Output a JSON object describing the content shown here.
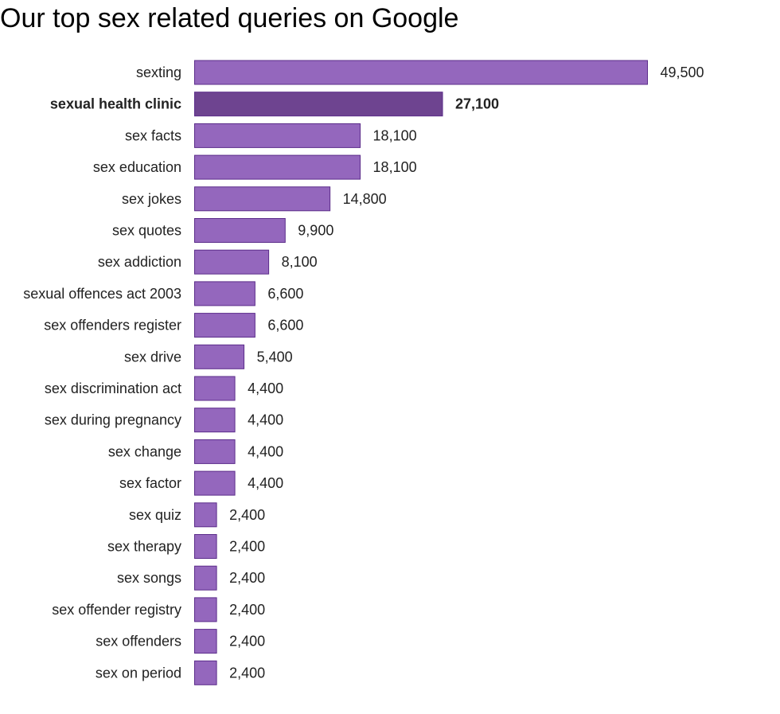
{
  "chart_data": {
    "type": "bar",
    "orientation": "horizontal",
    "title": "Our top sex related queries on Google",
    "xlabel": "",
    "ylabel": "",
    "grid": false,
    "xlim": [
      0,
      49500
    ],
    "colors": {
      "bar": "#9467bd",
      "bar_highlight": "#6e4490",
      "stroke": "#5b2c8a"
    },
    "highlight_category": "sexual health clinic",
    "categories": [
      "sexting",
      "sexual health clinic",
      "sex facts",
      "sex education",
      "sex jokes",
      "sex quotes",
      "sex addiction",
      "sexual offences act 2003",
      "sex offenders register",
      "sex drive",
      "sex discrimination act",
      "sex during pregnancy",
      "sex change",
      "sex factor",
      "sex quiz",
      "sex therapy",
      "sex songs",
      "sex offender registry",
      "sex offenders",
      "sex on period"
    ],
    "values": [
      49500,
      27100,
      18100,
      18100,
      14800,
      9900,
      8100,
      6600,
      6600,
      5400,
      4400,
      4400,
      4400,
      4400,
      2400,
      2400,
      2400,
      2400,
      2400,
      2400
    ],
    "value_labels": [
      "49,500",
      "27,100",
      "18,100",
      "18,100",
      "14,800",
      "9,900",
      "8,100",
      "6,600",
      "6,600",
      "5,400",
      "4,400",
      "4,400",
      "4,400",
      "4,400",
      "2,400",
      "2,400",
      "2,400",
      "2,400",
      "2,400",
      "2,400"
    ]
  }
}
